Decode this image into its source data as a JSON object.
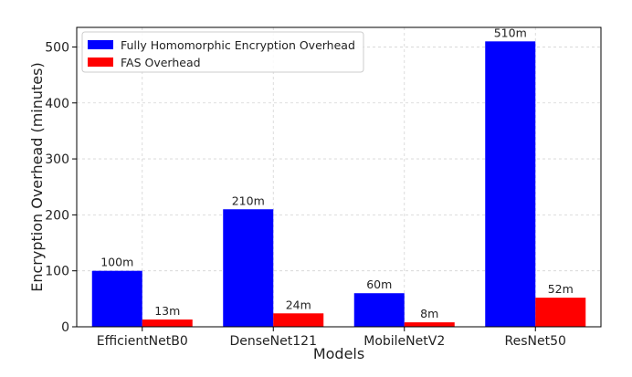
{
  "chart_data": {
    "type": "bar",
    "title": "",
    "xlabel": "Models",
    "ylabel": "Encryption Overhead (minutes)",
    "categories": [
      "EfficientNetB0",
      "DenseNet121",
      "MobileNetV2",
      "ResNet50"
    ],
    "series": [
      {
        "name": "Fully Homomorphic Encryption Overhead",
        "color": "#0000ff",
        "values": [
          100,
          210,
          60,
          510
        ],
        "labels": [
          "100m",
          "210m",
          "60m",
          "510m"
        ]
      },
      {
        "name": "FAS Overhead",
        "color": "#ff0000",
        "values": [
          13,
          24,
          8,
          52
        ],
        "labels": [
          "13m",
          "24m",
          "8m",
          "52m"
        ]
      }
    ],
    "ylim": [
      0,
      535
    ],
    "yticks": [
      0,
      100,
      200,
      300,
      400,
      500
    ],
    "ytick_labels": [
      "0",
      "100",
      "200",
      "300",
      "400",
      "500"
    ],
    "grid": true,
    "legend_position": "top-left"
  }
}
